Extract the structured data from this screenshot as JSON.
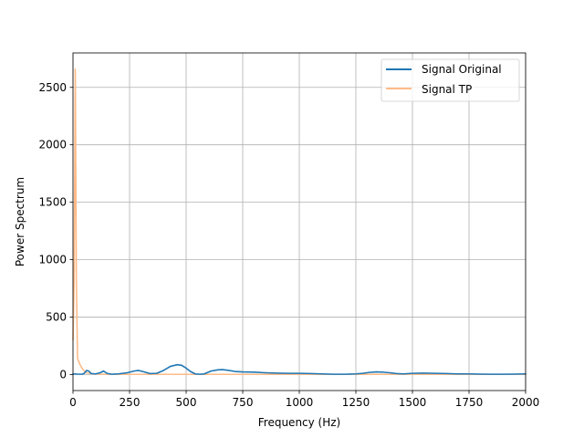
{
  "chart_data": {
    "type": "line",
    "title": "",
    "xlabel": "Frequency (Hz)",
    "ylabel": "Power Spectrum",
    "xlim": [
      0,
      2000
    ],
    "ylim": [
      -140,
      2800
    ],
    "xticks": [
      0,
      250,
      500,
      750,
      1000,
      1250,
      1500,
      1750,
      2000
    ],
    "yticks": [
      0,
      500,
      1000,
      1500,
      2000,
      2500
    ],
    "grid": true,
    "legend_position": "top-right",
    "series": [
      {
        "name": "Signal Original",
        "color": "#1f77b4",
        "x": [
          0,
          20,
          40,
          50,
          60,
          70,
          80,
          100,
          120,
          135,
          150,
          170,
          200,
          240,
          270,
          290,
          310,
          340,
          370,
          400,
          430,
          460,
          480,
          500,
          520,
          540,
          560,
          580,
          610,
          640,
          660,
          690,
          720,
          750,
          800,
          850,
          900,
          950,
          1000,
          1050,
          1100,
          1150,
          1200,
          1250,
          1280,
          1310,
          1340,
          1370,
          1400,
          1430,
          1460,
          1500,
          1550,
          1600,
          1650,
          1700,
          1750,
          1800,
          1850,
          1900,
          1950,
          2000
        ],
        "y": [
          5,
          3,
          2,
          10,
          35,
          30,
          8,
          5,
          15,
          30,
          10,
          2,
          5,
          15,
          30,
          35,
          25,
          8,
          10,
          35,
          70,
          85,
          80,
          55,
          25,
          5,
          2,
          5,
          30,
          40,
          42,
          35,
          25,
          22,
          20,
          15,
          12,
          10,
          10,
          8,
          5,
          2,
          2,
          5,
          10,
          18,
          22,
          20,
          15,
          8,
          5,
          10,
          12,
          10,
          8,
          5,
          5,
          3,
          2,
          2,
          3,
          5
        ]
      },
      {
        "name": "Signal TP",
        "color": "#ffbb88",
        "x": [
          0,
          5,
          10,
          15,
          20,
          30,
          40,
          50,
          60,
          80,
          100,
          150,
          200,
          300,
          500,
          750,
          1000,
          1250,
          1500,
          1750,
          2000
        ],
        "y": [
          300,
          800,
          2660,
          800,
          140,
          90,
          55,
          30,
          15,
          8,
          3,
          2,
          1,
          1,
          1,
          1,
          1,
          1,
          1,
          1,
          1
        ]
      }
    ]
  }
}
